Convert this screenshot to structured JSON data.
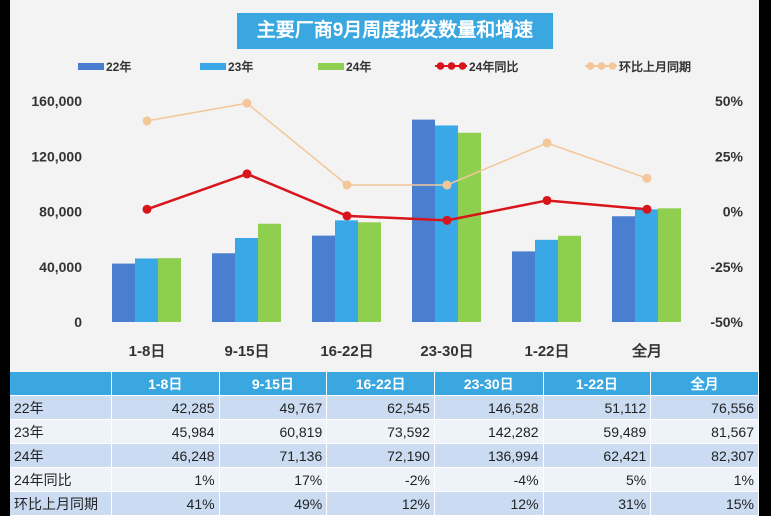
{
  "chart_data": {
    "type": "bar+line",
    "title": "主要厂商9月周度批发数量和增速",
    "categories": [
      "1-8日",
      "9-15日",
      "16-22日",
      "23-30日",
      "1-22日",
      "全月"
    ],
    "series": [
      {
        "name": "22年",
        "type": "bar",
        "axis": "left",
        "color": "#4a7fcf",
        "values": [
          42285,
          49767,
          62545,
          146528,
          51112,
          76556
        ]
      },
      {
        "name": "23年",
        "type": "bar",
        "axis": "left",
        "color": "#3aa8e6",
        "values": [
          45984,
          60819,
          73592,
          142282,
          59489,
          81567
        ]
      },
      {
        "name": "24年",
        "type": "bar",
        "axis": "left",
        "color": "#8fcf4f",
        "values": [
          46248,
          71136,
          72190,
          136994,
          62421,
          82307
        ]
      },
      {
        "name": "24年同比",
        "type": "line",
        "axis": "right",
        "color": "#d9141b",
        "values": [
          1,
          17,
          -2,
          -4,
          5,
          1
        ]
      },
      {
        "name": "环比上月同期",
        "type": "line",
        "axis": "right",
        "color": "#f3c79a",
        "values": [
          41,
          49,
          12,
          12,
          31,
          15
        ]
      }
    ],
    "left_axis": {
      "ylim": [
        0,
        160000
      ],
      "ticks": [
        "0",
        "40,000",
        "80,000",
        "120,000",
        "160,000"
      ]
    },
    "right_axis": {
      "ylim": [
        -50,
        50
      ],
      "ticks": [
        "-50%",
        "-25%",
        "0%",
        "25%",
        "50%"
      ]
    },
    "grid": false,
    "legend": "top"
  },
  "table": {
    "headers": [
      "",
      "1-8日",
      "9-15日",
      "16-22日",
      "23-30日",
      "1-22日",
      "全月"
    ],
    "rows": [
      [
        "22年",
        "42,285",
        "49,767",
        "62,545",
        "146,528",
        "51,112",
        "76,556"
      ],
      [
        "23年",
        "45,984",
        "60,819",
        "73,592",
        "142,282",
        "59,489",
        "81,567"
      ],
      [
        "24年",
        "46,248",
        "71,136",
        "72,190",
        "136,994",
        "62,421",
        "82,307"
      ],
      [
        "24年同比",
        "1%",
        "17%",
        "-2%",
        "-4%",
        "5%",
        "1%"
      ],
      [
        "环比上月同期",
        "41%",
        "49%",
        "12%",
        "12%",
        "31%",
        "15%"
      ]
    ]
  }
}
